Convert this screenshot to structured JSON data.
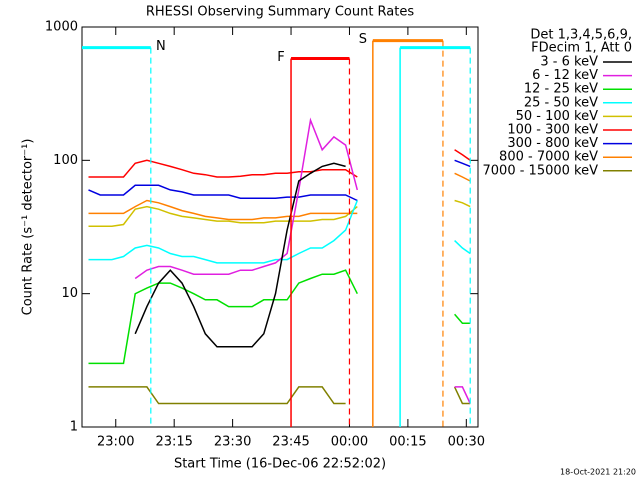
{
  "chart_data": {
    "type": "line",
    "title": "RHESSI Observing Summary Count Rates",
    "xlabel": "Start Time (16-Dec-06 22:52:02)",
    "ylabel": "Count Rate (s⁻¹ detector⁻¹)",
    "legend_header": [
      "Det 1,3,4,5,6,9,",
      "FDecim 1, Att 0"
    ],
    "footer": "18-Oct-2021 21:20",
    "log_y": true,
    "ylim": [
      1,
      1000
    ],
    "yticks": [
      1,
      10,
      100,
      1000
    ],
    "xlim": [
      "22:51:20",
      "00:33:00"
    ],
    "xticks": [
      "23:00",
      "23:15",
      "23:30",
      "23:45",
      "00:00",
      "00:15",
      "00:30"
    ],
    "x": [
      "22:53",
      "22:56",
      "22:59",
      "23:02",
      "23:05",
      "23:08",
      "23:11",
      "23:14",
      "23:17",
      "23:20",
      "23:23",
      "23:26",
      "23:29",
      "23:32",
      "23:35",
      "23:38",
      "23:41",
      "23:44",
      "23:47",
      "23:50",
      "23:53",
      "23:56",
      "23:59",
      "00:02",
      "00:05",
      "00:27",
      "00:29",
      "00:31"
    ],
    "series": [
      {
        "name": "3 - 6 keV",
        "color": "#000000",
        "values": [
          null,
          null,
          null,
          null,
          5,
          8,
          12,
          15,
          12,
          8,
          5,
          4,
          4,
          4,
          4,
          5,
          10,
          30,
          70,
          80,
          90,
          95,
          90,
          null,
          null,
          null,
          null,
          null
        ]
      },
      {
        "name": "6 - 12 keV",
        "color": "#e020e0",
        "values": [
          null,
          null,
          null,
          null,
          13,
          15,
          16,
          16,
          15,
          14,
          14,
          14,
          14,
          15,
          15,
          16,
          17,
          20,
          60,
          200,
          120,
          150,
          130,
          60,
          null,
          2,
          2,
          1.5
        ]
      },
      {
        "name": "12 - 25 keV",
        "color": "#00e000",
        "values": [
          3,
          3,
          3,
          3,
          10,
          11,
          12,
          12,
          11,
          10,
          9,
          9,
          8,
          8,
          8,
          9,
          9,
          9,
          12,
          13,
          14,
          14,
          15,
          10,
          null,
          7,
          6,
          6
        ]
      },
      {
        "name": "25 - 50 keV",
        "color": "#00ffff",
        "values": [
          18,
          18,
          18,
          19,
          22,
          23,
          22,
          20,
          19,
          19,
          18,
          17,
          17,
          17,
          17,
          17,
          18,
          18,
          20,
          22,
          22,
          25,
          30,
          50,
          null,
          25,
          22,
          20
        ]
      },
      {
        "name": "50 - 100 keV",
        "color": "#d0c000",
        "values": [
          32,
          32,
          32,
          33,
          43,
          45,
          43,
          40,
          38,
          37,
          36,
          35,
          35,
          34,
          34,
          34,
          35,
          35,
          35,
          35,
          36,
          36,
          38,
          45,
          null,
          50,
          48,
          45
        ]
      },
      {
        "name": "100 - 300 keV",
        "color": "#ff0000",
        "values": [
          75,
          75,
          75,
          75,
          95,
          100,
          95,
          90,
          85,
          80,
          78,
          75,
          75,
          76,
          78,
          78,
          80,
          80,
          82,
          82,
          85,
          85,
          85,
          75,
          null,
          120,
          110,
          100
        ]
      },
      {
        "name": "300 - 800 keV",
        "color": "#0000e0",
        "values": [
          60,
          55,
          55,
          55,
          65,
          65,
          65,
          60,
          58,
          55,
          55,
          55,
          55,
          52,
          52,
          52,
          52,
          53,
          53,
          55,
          55,
          55,
          55,
          50,
          null,
          100,
          95,
          90
        ]
      },
      {
        "name": "800 - 7000 keV",
        "color": "#ff8000",
        "values": [
          40,
          40,
          40,
          40,
          45,
          50,
          48,
          45,
          42,
          40,
          38,
          37,
          36,
          36,
          36,
          37,
          37,
          38,
          38,
          40,
          40,
          40,
          40,
          40,
          null,
          80,
          75,
          70
        ]
      },
      {
        "name": "7000 - 15000 keV",
        "color": "#808000",
        "values": [
          2,
          2,
          2,
          2,
          2,
          2,
          1.5,
          1.5,
          1.5,
          1.5,
          1.5,
          1.5,
          1.5,
          1.5,
          1.5,
          1.5,
          1.5,
          1.5,
          2,
          2,
          2,
          1.5,
          1.5,
          null,
          null,
          2,
          1.5,
          1.5
        ]
      }
    ],
    "flags": [
      {
        "label": "N",
        "color": "#00ffff",
        "start": "22:51:20",
        "end": "23:09",
        "level": 700
      },
      {
        "label": "F",
        "color": "#ff0000",
        "start": "23:45",
        "end": "00:00",
        "level": 580
      },
      {
        "label": "S",
        "color": "#ff8000",
        "start": "00:06",
        "end": "00:24",
        "level": 790
      },
      {
        "label": null,
        "color": "#00ffff",
        "start": "00:13",
        "end": "00:31",
        "level": 700
      }
    ]
  }
}
